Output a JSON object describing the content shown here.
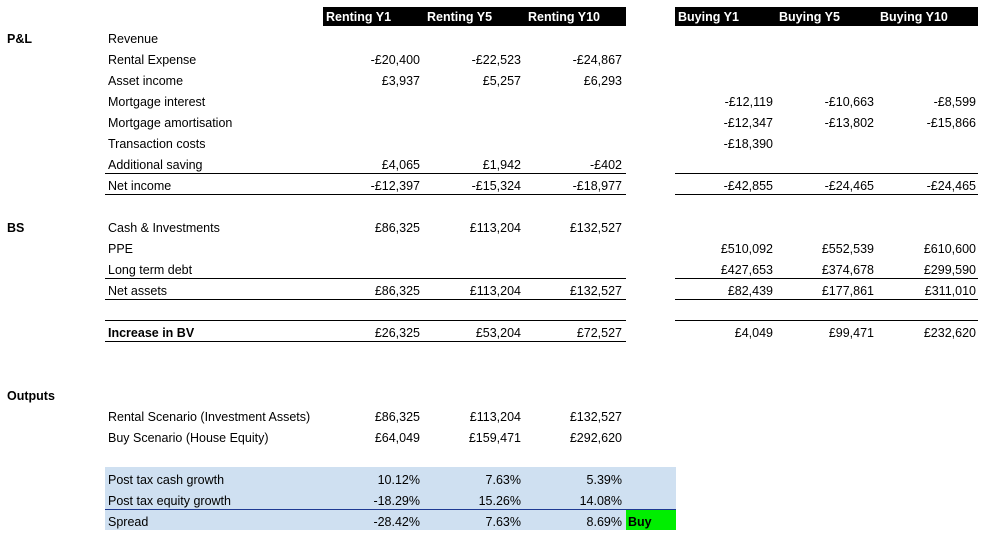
{
  "headers": {
    "renting": [
      "Renting Y1",
      "Renting Y5",
      "Renting Y10"
    ],
    "buying": [
      "Buying Y1",
      "Buying Y5",
      "Buying Y10"
    ]
  },
  "sections": {
    "pl": "P&L",
    "bs": "BS",
    "outputs": "Outputs"
  },
  "rows": {
    "revenue": {
      "label": "Revenue",
      "rent": [
        "",
        "",
        ""
      ],
      "buy": [
        "",
        "",
        ""
      ]
    },
    "rental_expense": {
      "label": "Rental Expense",
      "rent": [
        "-£20,400",
        "-£22,523",
        "-£24,867"
      ],
      "buy": [
        "",
        "",
        ""
      ]
    },
    "asset_income": {
      "label": "Asset income",
      "rent": [
        "£3,937",
        "£5,257",
        "£6,293"
      ],
      "buy": [
        "",
        "",
        ""
      ]
    },
    "mortgage_interest": {
      "label": "Mortgage interest",
      "rent": [
        "",
        "",
        ""
      ],
      "buy": [
        "-£12,119",
        "-£10,663",
        "-£8,599"
      ]
    },
    "mortgage_amortisation": {
      "label": "Mortgage amortisation",
      "rent": [
        "",
        "",
        ""
      ],
      "buy": [
        "-£12,347",
        "-£13,802",
        "-£15,866"
      ]
    },
    "transaction_costs": {
      "label": "Transaction costs",
      "rent": [
        "",
        "",
        ""
      ],
      "buy": [
        "-£18,390",
        "",
        ""
      ]
    },
    "additional_saving": {
      "label": "Additional saving",
      "rent": [
        "£4,065",
        "£1,942",
        "-£402"
      ],
      "buy": [
        "",
        "",
        ""
      ]
    },
    "net_income": {
      "label": "Net income",
      "rent": [
        "-£12,397",
        "-£15,324",
        "-£18,977"
      ],
      "buy": [
        "-£42,855",
        "-£24,465",
        "-£24,465"
      ]
    },
    "cash_investments": {
      "label": "Cash & Investments",
      "rent": [
        "£86,325",
        "£113,204",
        "£132,527"
      ],
      "buy": [
        "",
        "",
        ""
      ]
    },
    "ppe": {
      "label": "PPE",
      "rent": [
        "",
        "",
        ""
      ],
      "buy": [
        "£510,092",
        "£552,539",
        "£610,600"
      ]
    },
    "long_term_debt": {
      "label": "Long term debt",
      "rent": [
        "",
        "",
        ""
      ],
      "buy": [
        "£427,653",
        "£374,678",
        "£299,590"
      ]
    },
    "net_assets": {
      "label": "Net assets",
      "rent": [
        "£86,325",
        "£113,204",
        "£132,527"
      ],
      "buy": [
        "£82,439",
        "£177,861",
        "£311,010"
      ]
    },
    "increase_bv": {
      "label": "Increase in BV",
      "rent": [
        "£26,325",
        "£53,204",
        "£72,527"
      ],
      "buy": [
        "£4,049",
        "£99,471",
        "£232,620"
      ]
    },
    "rental_scenario": {
      "label": "Rental Scenario (Investment Assets)",
      "rent": [
        "£86,325",
        "£113,204",
        "£132,527"
      ],
      "buy": [
        "",
        "",
        ""
      ]
    },
    "buy_scenario": {
      "label": "Buy Scenario (House Equity)",
      "rent": [
        "£64,049",
        "£159,471",
        "£292,620"
      ],
      "buy": [
        "",
        "",
        ""
      ]
    },
    "cash_growth": {
      "label": "Post tax cash growth",
      "rent": [
        "10.12%",
        "7.63%",
        "5.39%"
      ],
      "buy": [
        "",
        "",
        ""
      ]
    },
    "equity_growth": {
      "label": "Post tax equity growth",
      "rent": [
        "-18.29%",
        "15.26%",
        "14.08%"
      ],
      "buy": [
        "",
        "",
        ""
      ]
    },
    "spread": {
      "label": "Spread",
      "rent": [
        "-28.42%",
        "7.63%",
        "8.69%"
      ],
      "buy": [
        "",
        "",
        ""
      ]
    }
  },
  "verdict": "Buy",
  "colors": {
    "header_bg": "#000000",
    "highlight_blue": "#cfe0f1",
    "verdict_green": "#00ee00"
  }
}
